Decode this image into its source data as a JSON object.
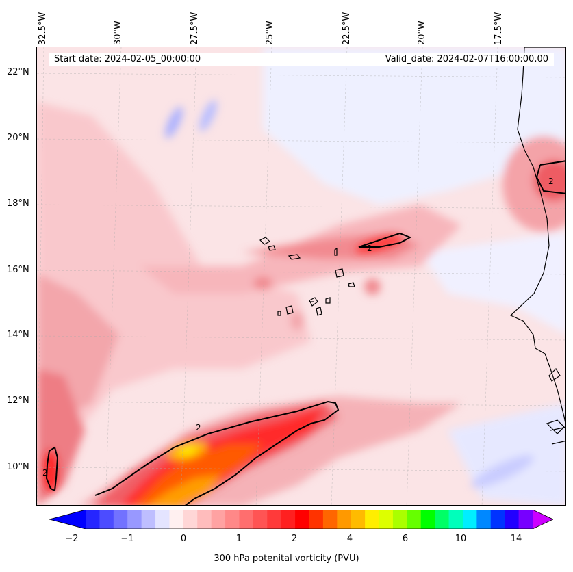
{
  "map": {
    "lon_labels": [
      "32.5°W",
      "30°W",
      "27.5°W",
      "25°W",
      "22.5°W",
      "20°W",
      "17.5°W"
    ],
    "lat_labels": [
      "22°N",
      "20°N",
      "18°N",
      "16°N",
      "14°N",
      "12°N",
      "10°N"
    ],
    "start_date": "Start date: 2024-02-05_00:00:00",
    "valid_date": "Valid_date: 2024-02-07T16:00:00.00",
    "contour_label": "2",
    "colorbar_ticks": [
      "−2",
      "−1",
      "0",
      "1",
      "2",
      "4",
      "6",
      "10",
      "14"
    ],
    "colorbar_label": "300 hPa potenital vorticity (PVU)",
    "colorbar_colors": [
      "#0000ff",
      "#2626ff",
      "#4c4cff",
      "#7272ff",
      "#9898ff",
      "#bebeff",
      "#e4e4ff",
      "#fff0f0",
      "#ffd6d6",
      "#ffbcbc",
      "#ffa2a2",
      "#ff8888",
      "#ff6e6e",
      "#ff5454",
      "#ff3a3a",
      "#ff2020",
      "#ff0000",
      "#ff3300",
      "#ff6600",
      "#ff9900",
      "#ffbb00",
      "#ffee00",
      "#ddff00",
      "#aaff00",
      "#66ff00",
      "#00ff00",
      "#00ff66",
      "#00ffbb",
      "#00eeff",
      "#0088ff",
      "#0033ff",
      "#2200ff",
      "#7700ff",
      "#cc00ff"
    ]
  }
}
